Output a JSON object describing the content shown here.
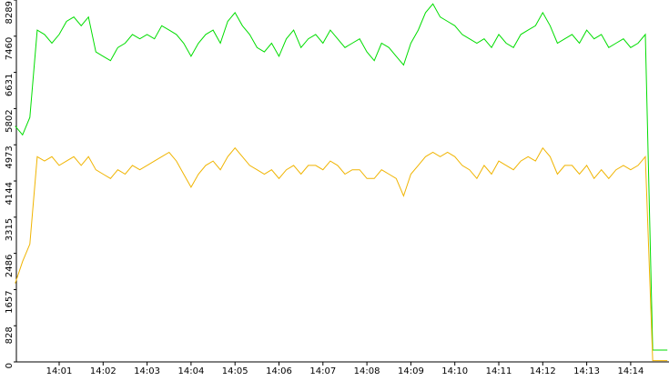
{
  "chart_data": {
    "type": "line",
    "categories": [
      null,
      null,
      null,
      null,
      null,
      null,
      "14:01",
      null,
      null,
      null,
      null,
      null,
      "14:02",
      null,
      null,
      null,
      null,
      null,
      "14:03",
      null,
      null,
      null,
      null,
      null,
      "14:04",
      null,
      null,
      null,
      null,
      null,
      "14:05",
      null,
      null,
      null,
      null,
      null,
      "14:06",
      null,
      null,
      null,
      null,
      null,
      "14:07",
      null,
      null,
      null,
      null,
      null,
      "14:08",
      null,
      null,
      null,
      null,
      null,
      "14:09",
      null,
      null,
      null,
      null,
      null,
      "14:10",
      null,
      null,
      null,
      null,
      null,
      "14:11",
      null,
      null,
      null,
      null,
      null,
      "14:12",
      null,
      null,
      null,
      null,
      null,
      "14:13",
      null,
      null,
      null,
      null,
      null,
      "14:14",
      null,
      null,
      null,
      null,
      null
    ],
    "series": [
      {
        "color": "#00dd00",
        "values": [
          5400,
          5200,
          5600,
          7600,
          7500,
          7300,
          7500,
          7800,
          7900,
          7700,
          7900,
          7100,
          7000,
          6900,
          7200,
          7300,
          7500,
          7400,
          7500,
          7400,
          7700,
          7600,
          7500,
          7300,
          7000,
          7300,
          7500,
          7600,
          7300,
          7800,
          8000,
          7700,
          7500,
          7200,
          7100,
          7300,
          7000,
          7400,
          7600,
          7200,
          7400,
          7500,
          7300,
          7600,
          7400,
          7200,
          7300,
          7400,
          7100,
          6900,
          7300,
          7200,
          7000,
          6800,
          7300,
          7600,
          8000,
          8200,
          7900,
          7800,
          7700,
          7500,
          7400,
          7300,
          7400,
          7200,
          7500,
          7300,
          7200,
          7500,
          7600,
          7700,
          8000,
          7700,
          7300,
          7400,
          7500,
          7300,
          7600,
          7400,
          7500,
          7200,
          7300,
          7400,
          7200,
          7300,
          7500,
          270,
          270,
          270
        ]
      },
      {
        "color": "#f0b400",
        "values": [
          1800,
          2300,
          2700,
          4700,
          4600,
          4700,
          4500,
          4600,
          4700,
          4500,
          4700,
          4400,
          4300,
          4200,
          4400,
          4300,
          4500,
          4400,
          4500,
          4600,
          4700,
          4800,
          4600,
          4300,
          4000,
          4300,
          4500,
          4600,
          4400,
          4700,
          4900,
          4700,
          4500,
          4400,
          4300,
          4400,
          4200,
          4400,
          4500,
          4300,
          4500,
          4500,
          4400,
          4600,
          4500,
          4300,
          4400,
          4400,
          4200,
          4200,
          4400,
          4300,
          4200,
          3800,
          4300,
          4500,
          4700,
          4800,
          4700,
          4800,
          4700,
          4500,
          4400,
          4200,
          4500,
          4300,
          4600,
          4500,
          4400,
          4600,
          4700,
          4600,
          4900,
          4700,
          4300,
          4500,
          4500,
          4300,
          4500,
          4200,
          4400,
          4200,
          4400,
          4500,
          4400,
          4500,
          4700,
          30,
          30,
          30
        ]
      }
    ],
    "ylim": [
      0,
      8289
    ],
    "yticks": [
      0,
      828,
      1657,
      2486,
      3315,
      4144,
      4973,
      5802,
      6631,
      7460,
      8289
    ]
  }
}
